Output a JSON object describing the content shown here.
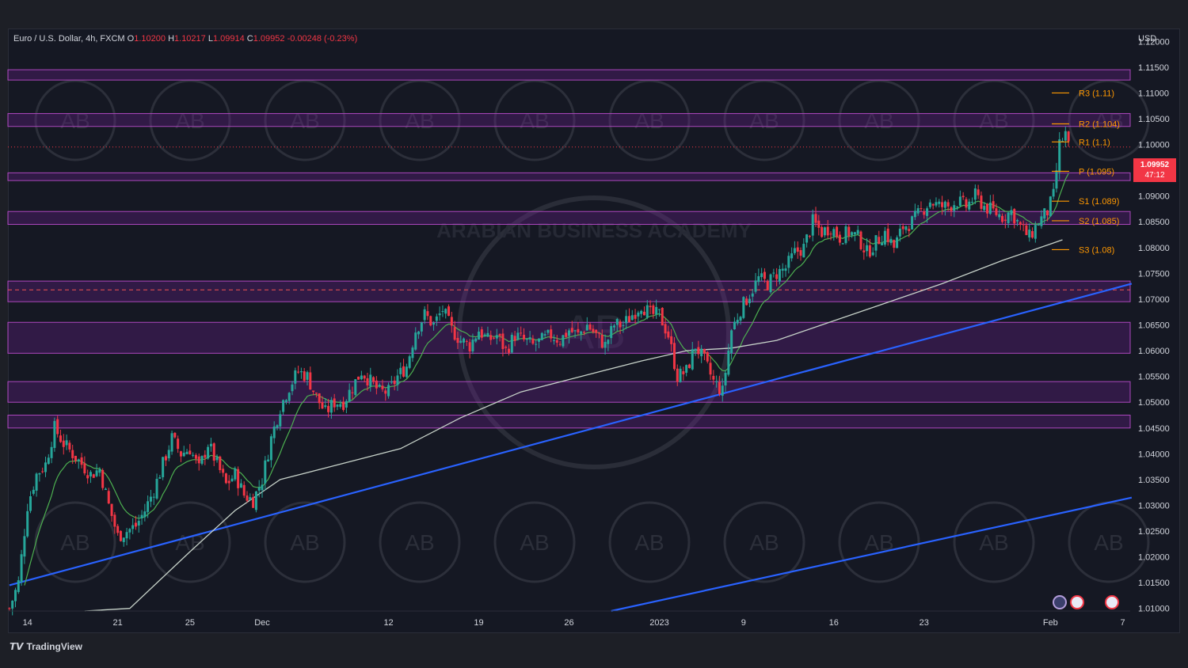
{
  "header": {
    "symbol": "Euro / U.S. Dollar, 4h, FXCM",
    "open_label": "O",
    "open": "1.10200",
    "high_label": "H",
    "high": "1.10217",
    "low_label": "L",
    "low": "1.09914",
    "close_label": "C",
    "close": "1.09952",
    "change": "-0.00248 (-0.23%)"
  },
  "currency": "USD",
  "last_price": {
    "price": "1.09952",
    "countdown": "47:12"
  },
  "branding": {
    "logo_text": "TradingView",
    "watermark": "ARABIAN BUSINESS ACADEMY",
    "watermark_mark": "AB"
  },
  "colors": {
    "up": "#26a69a",
    "down": "#f23645",
    "zone": "#7b1fa2",
    "trendline": "#2962ff",
    "ma_fast": "#4caf50",
    "ma_slow": "#c7d2c9",
    "pivot": "#ff9800"
  },
  "chart_data": {
    "type": "candlestick",
    "interval": "4h",
    "y_axis": {
      "ticks": [
        "1.12000",
        "1.11500",
        "1.11000",
        "1.10500",
        "1.10000",
        "1.09500",
        "1.09000",
        "1.08500",
        "1.08000",
        "1.07500",
        "1.07000",
        "1.06500",
        "1.06000",
        "1.05500",
        "1.05000",
        "1.04500",
        "1.04000",
        "1.03500",
        "1.03000",
        "1.02500",
        "1.02000",
        "1.01500",
        "1.01000"
      ],
      "range": [
        1.0095,
        1.1225
      ]
    },
    "x_axis": {
      "ticks": [
        {
          "label": "14",
          "i": 6
        },
        {
          "label": "21",
          "i": 36
        },
        {
          "label": "25",
          "i": 60
        },
        {
          "label": "Dec",
          "i": 84
        },
        {
          "label": "12",
          "i": 126
        },
        {
          "label": "19",
          "i": 156
        },
        {
          "label": "26",
          "i": 186
        },
        {
          "label": "2023",
          "i": 216
        },
        {
          "label": "9",
          "i": 244
        },
        {
          "label": "16",
          "i": 274
        },
        {
          "label": "23",
          "i": 304
        },
        {
          "label": "Feb",
          "i": 346
        },
        {
          "label": "7",
          "i": 370
        }
      ]
    },
    "close_path": [
      [
        0,
        1.01
      ],
      [
        3,
        1.015
      ],
      [
        6,
        1.03
      ],
      [
        9,
        1.036
      ],
      [
        12,
        1.038
      ],
      [
        15,
        1.045
      ],
      [
        18,
        1.042
      ],
      [
        21,
        1.04
      ],
      [
        24,
        1.038
      ],
      [
        27,
        1.036
      ],
      [
        30,
        1.037
      ],
      [
        33,
        1.03
      ],
      [
        36,
        1.024
      ],
      [
        39,
        1.025
      ],
      [
        42,
        1.026
      ],
      [
        45,
        1.029
      ],
      [
        48,
        1.033
      ],
      [
        51,
        1.038
      ],
      [
        54,
        1.043
      ],
      [
        57,
        1.04
      ],
      [
        60,
        1.041
      ],
      [
        63,
        1.037
      ],
      [
        66,
        1.042
      ],
      [
        69,
        1.038
      ],
      [
        72,
        1.034
      ],
      [
        75,
        1.036
      ],
      [
        78,
        1.032
      ],
      [
        81,
        1.031
      ],
      [
        84,
        1.035
      ],
      [
        87,
        1.043
      ],
      [
        90,
        1.049
      ],
      [
        93,
        1.053
      ],
      [
        96,
        1.056
      ],
      [
        99,
        1.055
      ],
      [
        102,
        1.051
      ],
      [
        105,
        1.048
      ],
      [
        108,
        1.05
      ],
      [
        111,
        1.05
      ],
      [
        114,
        1.053
      ],
      [
        117,
        1.056
      ],
      [
        120,
        1.054
      ],
      [
        123,
        1.052
      ],
      [
        126,
        1.052
      ],
      [
        129,
        1.055
      ],
      [
        132,
        1.057
      ],
      [
        135,
        1.064
      ],
      [
        138,
        1.067
      ],
      [
        141,
        1.065
      ],
      [
        144,
        1.068
      ],
      [
        147,
        1.064
      ],
      [
        150,
        1.062
      ],
      [
        153,
        1.061
      ],
      [
        156,
        1.064
      ],
      [
        159,
        1.062
      ],
      [
        162,
        1.063
      ],
      [
        165,
        1.06
      ],
      [
        168,
        1.063
      ],
      [
        171,
        1.062
      ],
      [
        174,
        1.061
      ],
      [
        177,
        1.062
      ],
      [
        180,
        1.063
      ],
      [
        183,
        1.062
      ],
      [
        186,
        1.064
      ],
      [
        189,
        1.063
      ],
      [
        192,
        1.065
      ],
      [
        195,
        1.063
      ],
      [
        198,
        1.061
      ],
      [
        201,
        1.065
      ],
      [
        204,
        1.065
      ],
      [
        207,
        1.067
      ],
      [
        210,
        1.069
      ],
      [
        213,
        1.067
      ],
      [
        216,
        1.067
      ],
      [
        219,
        1.063
      ],
      [
        222,
        1.055
      ],
      [
        225,
        1.056
      ],
      [
        228,
        1.061
      ],
      [
        231,
        1.058
      ],
      [
        234,
        1.054
      ],
      [
        237,
        1.052
      ],
      [
        240,
        1.064
      ],
      [
        243,
        1.068
      ],
      [
        246,
        1.071
      ],
      [
        249,
        1.074
      ],
      [
        252,
        1.073
      ],
      [
        255,
        1.075
      ],
      [
        258,
        1.076
      ],
      [
        261,
        1.079
      ],
      [
        264,
        1.08
      ],
      [
        267,
        1.085
      ],
      [
        270,
        1.083
      ],
      [
        273,
        1.084
      ],
      [
        276,
        1.082
      ],
      [
        279,
        1.083
      ],
      [
        282,
        1.082
      ],
      [
        285,
        1.079
      ],
      [
        288,
        1.081
      ],
      [
        291,
        1.083
      ],
      [
        294,
        1.08
      ],
      [
        297,
        1.084
      ],
      [
        300,
        1.085
      ],
      [
        303,
        1.087
      ],
      [
        306,
        1.089
      ],
      [
        309,
        1.088
      ],
      [
        312,
        1.088
      ],
      [
        315,
        1.089
      ],
      [
        318,
        1.088
      ],
      [
        321,
        1.09
      ],
      [
        324,
        1.088
      ],
      [
        327,
        1.087
      ],
      [
        330,
        1.086
      ],
      [
        333,
        1.087
      ],
      [
        336,
        1.084
      ],
      [
        339,
        1.082
      ],
      [
        342,
        1.085
      ],
      [
        345,
        1.087
      ],
      [
        347,
        1.09
      ],
      [
        349,
        1.1
      ],
      [
        351,
        1.102
      ],
      [
        352,
        1.0995
      ]
    ],
    "ma_slow": [
      [
        25,
        1.0
      ],
      [
        40,
        1.01
      ],
      [
        60,
        1.021
      ],
      [
        75,
        1.029
      ],
      [
        90,
        1.035
      ],
      [
        110,
        1.038
      ],
      [
        130,
        1.041
      ],
      [
        150,
        1.047
      ],
      [
        170,
        1.052
      ],
      [
        190,
        1.055
      ],
      [
        210,
        1.058
      ],
      [
        225,
        1.06
      ],
      [
        240,
        1.0605
      ],
      [
        255,
        1.062
      ],
      [
        270,
        1.065
      ],
      [
        290,
        1.069
      ],
      [
        310,
        1.073
      ],
      [
        330,
        1.0775
      ],
      [
        345,
        1.0805
      ],
      [
        350,
        1.0815
      ]
    ],
    "resistance_zones": [
      [
        1.1125,
        1.1145
      ],
      [
        1.1035,
        1.106
      ],
      [
        1.093,
        1.0945
      ],
      [
        1.0845,
        1.087
      ],
      [
        1.0695,
        1.0735
      ],
      [
        1.0595,
        1.0655
      ],
      [
        1.05,
        1.054
      ],
      [
        1.045,
        1.0475
      ]
    ],
    "zone_dashed_level": 1.0718,
    "last_price_line": 1.0995,
    "pivot_levels": [
      {
        "label": "R3 (1.11)",
        "value": 1.11
      },
      {
        "label": "R2 (1.104)",
        "value": 1.104
      },
      {
        "label": "R1 (1.1)",
        "value": 1.1005
      },
      {
        "label": "P (1.095)",
        "value": 1.0948
      },
      {
        "label": "S1 (1.089)",
        "value": 1.089
      },
      {
        "label": "S2 (1.085)",
        "value": 1.0852
      },
      {
        "label": "S3 (1.08)",
        "value": 1.0796
      }
    ],
    "trendlines": [
      {
        "name": "upper",
        "from": [
          0,
          1.0145
        ],
        "to": [
          373,
          1.073
        ]
      },
      {
        "name": "lower",
        "from": [
          200,
          1.0095
        ],
        "to": [
          373,
          1.0315
        ]
      }
    ]
  }
}
